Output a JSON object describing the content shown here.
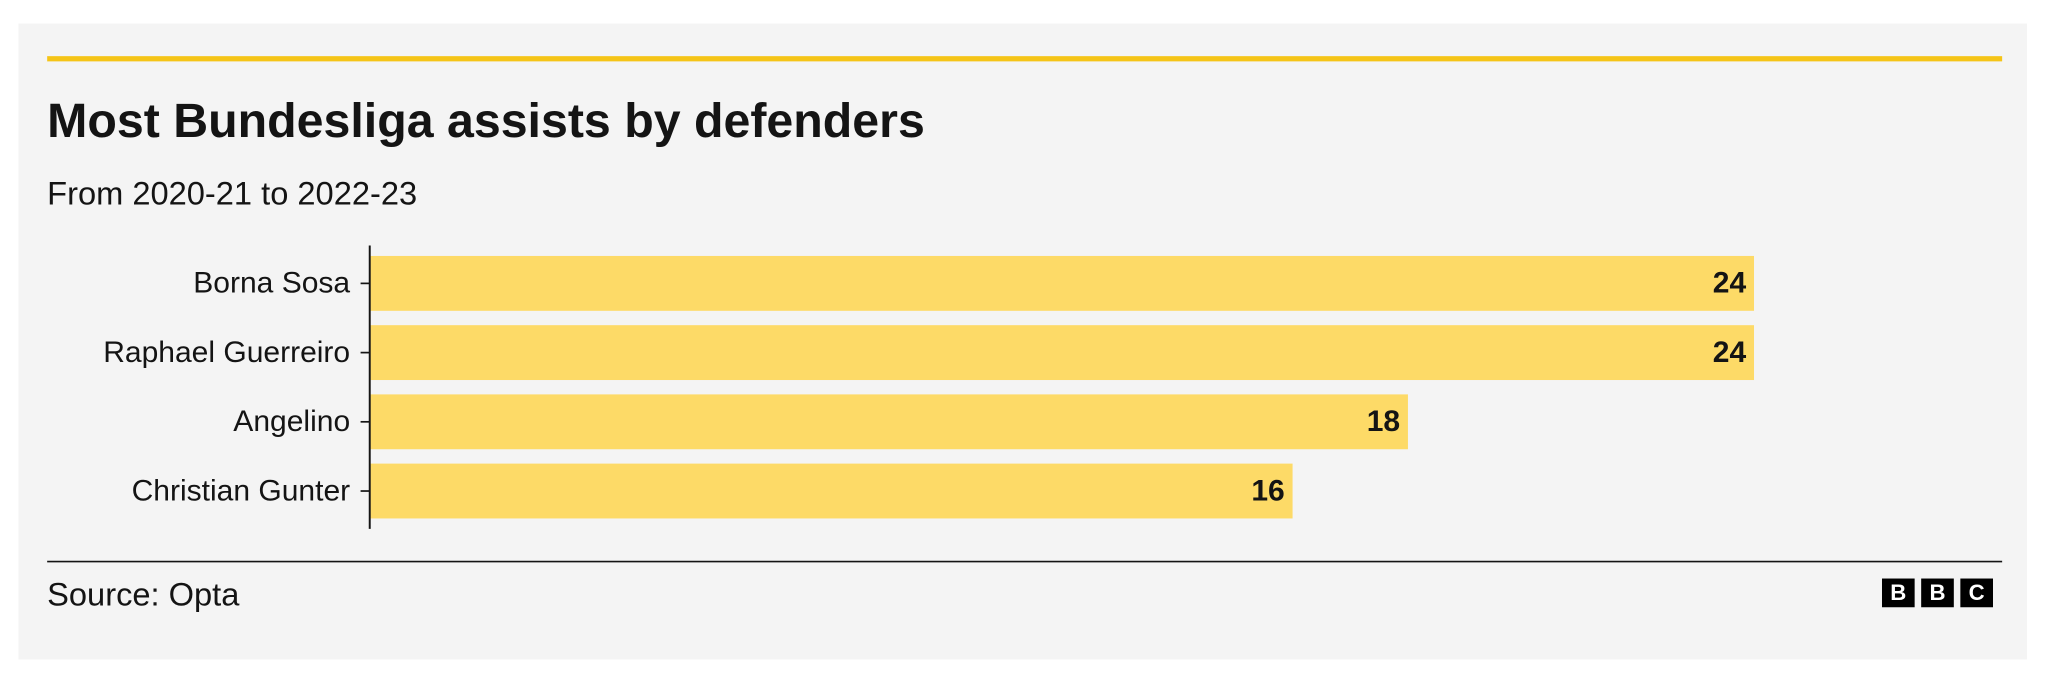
{
  "chart_data": {
    "type": "bar",
    "orientation": "horizontal",
    "title": "Most Bundesliga assists by defenders",
    "subtitle": "From 2020-21 to 2022-23",
    "categories": [
      "Borna Sosa",
      "Raphael Guerreiro",
      "Angelino",
      "Christian Gunter"
    ],
    "values": [
      24,
      24,
      18,
      16
    ],
    "color": "#fdda67",
    "xlim": [
      0,
      24
    ],
    "source": "Source: Opta",
    "logo": [
      "B",
      "B",
      "C"
    ]
  }
}
